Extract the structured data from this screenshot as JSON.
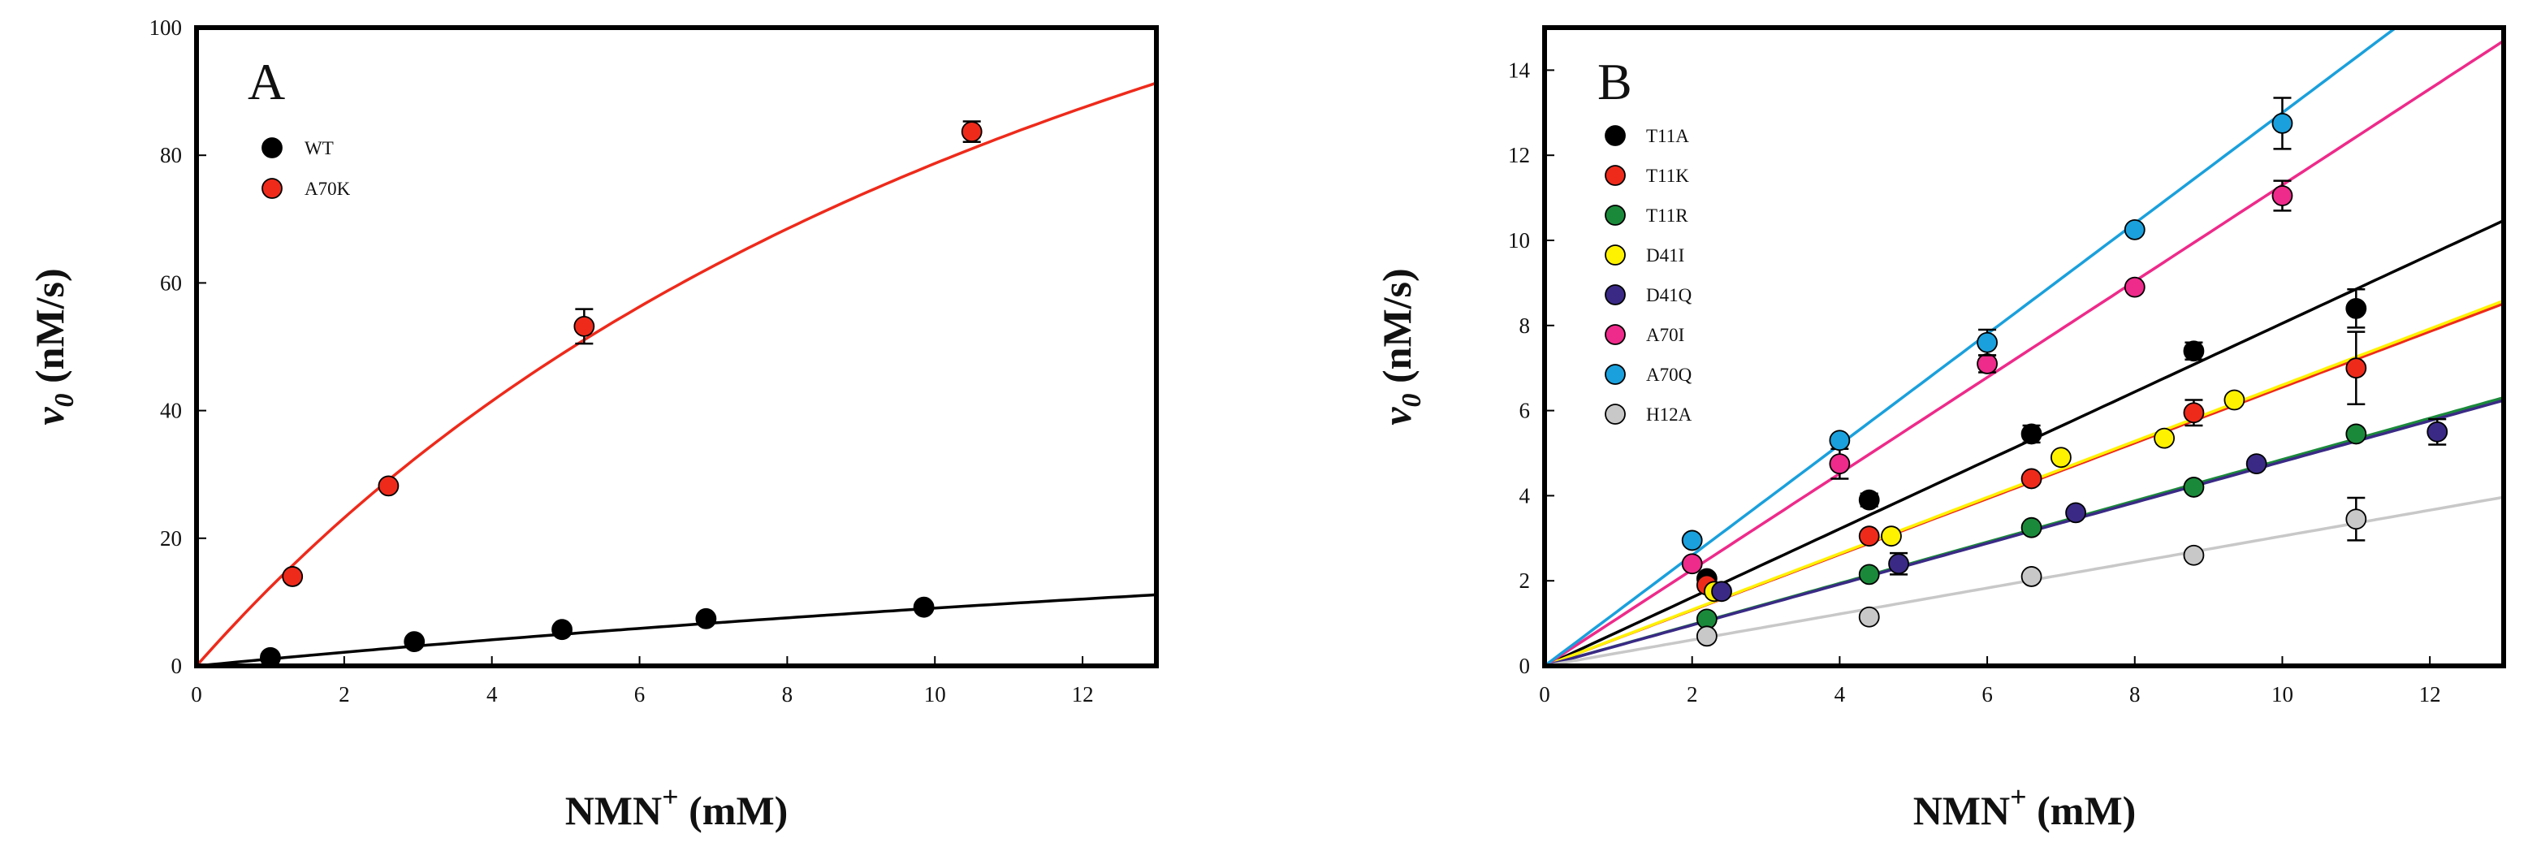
{
  "chart_data": [
    {
      "type": "scatter",
      "panel_label": "A",
      "xlabel": "NMN",
      "xlabel_superscript": "+",
      "xlabel_units": " (mM)",
      "ylabel": "v",
      "ylabel_subscript": "0",
      "ylabel_units": " (nM/s)",
      "xlim": [
        0,
        13
      ],
      "ylim": [
        0,
        100
      ],
      "xticks": [
        0,
        2,
        4,
        6,
        8,
        10,
        12
      ],
      "yticks": [
        0,
        20,
        40,
        60,
        80,
        100
      ],
      "legend_position": "top-left",
      "series": [
        {
          "name": "WT",
          "color": "#000000",
          "points": [
            [
              1.0,
              1.3
            ],
            [
              2.95,
              3.8
            ],
            [
              4.95,
              5.7
            ],
            [
              6.9,
              7.4
            ],
            [
              9.85,
              9.2
            ]
          ],
          "error_bars": [
            null,
            null,
            null,
            null,
            null
          ],
          "fit": {
            "model": "michaelis-menten",
            "vmax": 48,
            "km": 43
          }
        },
        {
          "name": "A70K",
          "color": "#ee2a1b",
          "points": [
            [
              1.3,
              14.0
            ],
            [
              2.6,
              28.2
            ],
            [
              5.25,
              53.2
            ],
            [
              10.5,
              83.7
            ]
          ],
          "error_bars": [
            null,
            null,
            2.7,
            1.6
          ],
          "fit": {
            "model": "michaelis-menten",
            "vmax": 196,
            "km": 14.9
          }
        }
      ]
    },
    {
      "type": "scatter",
      "panel_label": "B",
      "xlabel": "NMN",
      "xlabel_superscript": "+",
      "xlabel_units": " (mM)",
      "ylabel": "v",
      "ylabel_subscript": "0",
      "ylabel_units": " (nM/s)",
      "xlim": [
        0,
        13
      ],
      "ylim": [
        0,
        15
      ],
      "xticks": [
        0,
        2,
        4,
        6,
        8,
        10,
        12
      ],
      "yticks": [
        0,
        2,
        4,
        6,
        8,
        10,
        12,
        14
      ],
      "legend_position": "top-left",
      "series": [
        {
          "name": "T11A",
          "color": "#000000",
          "points": [
            [
              2.2,
              2.05
            ],
            [
              4.4,
              3.9
            ],
            [
              6.6,
              5.45
            ],
            [
              8.8,
              7.4
            ],
            [
              11.0,
              8.4
            ]
          ],
          "error_bars": [
            null,
            0.15,
            0.2,
            0.2,
            0.45
          ],
          "fit": {
            "model": "linear",
            "slope": 0.805
          }
        },
        {
          "name": "T11K",
          "color": "#ee2a1b",
          "points": [
            [
              2.2,
              1.9
            ],
            [
              4.4,
              3.05
            ],
            [
              6.6,
              4.4
            ],
            [
              8.8,
              5.95
            ],
            [
              11.0,
              7.0
            ]
          ],
          "error_bars": [
            null,
            null,
            null,
            0.3,
            0.85
          ],
          "fit": {
            "model": "linear",
            "slope": 0.655
          }
        },
        {
          "name": "T11R",
          "color": "#1a8a3a",
          "points": [
            [
              2.2,
              1.1
            ],
            [
              4.4,
              2.15
            ],
            [
              6.6,
              3.25
            ],
            [
              8.8,
              4.2
            ],
            [
              11.0,
              5.45
            ]
          ],
          "error_bars": [
            null,
            null,
            null,
            null,
            null
          ],
          "fit": {
            "model": "linear",
            "slope": 0.485
          }
        },
        {
          "name": "D41I",
          "color": "#fff200",
          "points": [
            [
              2.3,
              1.75
            ],
            [
              4.7,
              3.05
            ],
            [
              7.0,
              4.9
            ],
            [
              8.4,
              5.35
            ],
            [
              9.35,
              6.25
            ]
          ],
          "error_bars": [
            null,
            null,
            null,
            null,
            null
          ],
          "fit": {
            "model": "linear",
            "slope": 0.66
          }
        },
        {
          "name": "D41Q",
          "color": "#3a2a85",
          "points": [
            [
              2.4,
              1.75
            ],
            [
              4.8,
              2.4
            ],
            [
              7.2,
              3.6
            ],
            [
              9.65,
              4.75
            ],
            [
              12.1,
              5.5
            ]
          ],
          "error_bars": [
            null,
            0.25,
            null,
            null,
            0.3
          ],
          "fit": {
            "model": "linear",
            "slope": 0.48
          }
        },
        {
          "name": "A70I",
          "color": "#ee2a8a",
          "points": [
            [
              2.0,
              2.4
            ],
            [
              4.0,
              4.75
            ],
            [
              6.0,
              7.1
            ],
            [
              8.0,
              8.9
            ],
            [
              10.0,
              11.05
            ]
          ],
          "error_bars": [
            null,
            0.35,
            0.2,
            null,
            0.35
          ],
          "fit": {
            "model": "linear",
            "slope": 1.13
          }
        },
        {
          "name": "A70Q",
          "color": "#1aa0dc",
          "points": [
            [
              2.0,
              2.95
            ],
            [
              4.0,
              5.3
            ],
            [
              6.0,
              7.6
            ],
            [
              8.0,
              10.25
            ],
            [
              10.0,
              12.75
            ]
          ],
          "error_bars": [
            null,
            null,
            0.3,
            null,
            0.6
          ],
          "fit": {
            "model": "linear",
            "slope": 1.3
          }
        },
        {
          "name": "H12A",
          "color": "#c8c8c8",
          "points": [
            [
              2.2,
              0.7
            ],
            [
              4.4,
              1.15
            ],
            [
              6.6,
              2.1
            ],
            [
              8.8,
              2.6
            ],
            [
              11.0,
              3.45
            ]
          ],
          "error_bars": [
            null,
            null,
            null,
            null,
            0.5
          ],
          "fit": {
            "model": "linear",
            "slope": 0.305
          }
        }
      ]
    }
  ]
}
